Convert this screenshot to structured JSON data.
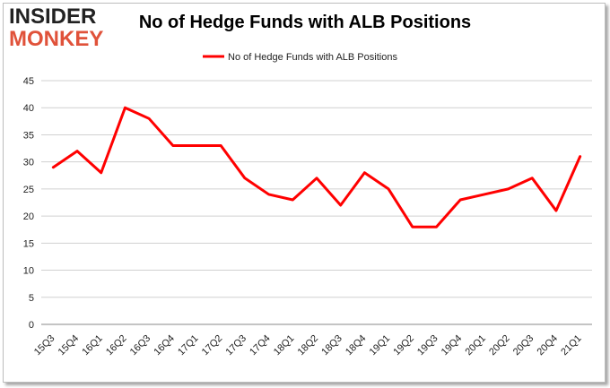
{
  "logo": {
    "line1": "INSIDER",
    "line2": "MONKEY"
  },
  "colors": {
    "series": "#ff0000",
    "grid": "#d0d0d0",
    "logo_accent": "#e0523a"
  },
  "chart_data": {
    "type": "line",
    "title": "No of Hedge Funds with ALB Positions",
    "xlabel": "",
    "ylabel": "",
    "categories": [
      "15Q3",
      "15Q4",
      "16Q1",
      "16Q2",
      "16Q3",
      "16Q4",
      "17Q1",
      "17Q2",
      "17Q3",
      "17Q4",
      "18Q1",
      "18Q2",
      "18Q3",
      "18Q4",
      "19Q1",
      "19Q2",
      "19Q3",
      "19Q4",
      "20Q1",
      "20Q2",
      "20Q3",
      "20Q4",
      "21Q1"
    ],
    "series": [
      {
        "name": "No of Hedge Funds with ALB Positions",
        "values": [
          29,
          32,
          28,
          40,
          38,
          33,
          33,
          33,
          27,
          24,
          23,
          27,
          22,
          28,
          25,
          18,
          18,
          23,
          24,
          25,
          27,
          21,
          31
        ]
      }
    ],
    "ylim": [
      0,
      45
    ],
    "yticks": [
      0,
      5,
      10,
      15,
      20,
      25,
      30,
      35,
      40,
      45
    ],
    "grid": true,
    "legend_position": "top-center"
  }
}
